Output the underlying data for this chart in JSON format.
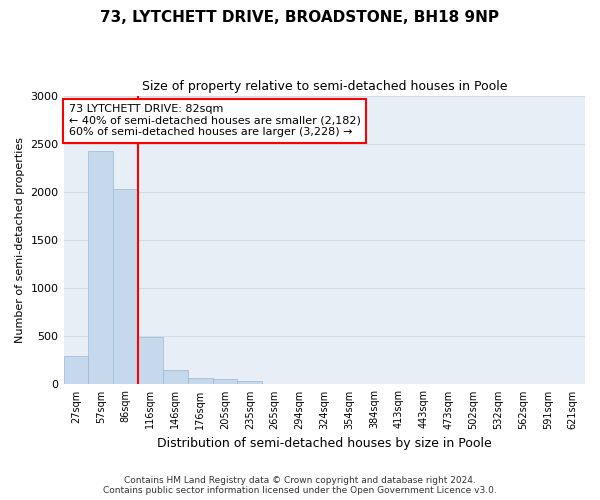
{
  "title": "73, LYTCHETT DRIVE, BROADSTONE, BH18 9NP",
  "subtitle": "Size of property relative to semi-detached houses in Poole",
  "xlabel": "Distribution of semi-detached houses by size in Poole",
  "ylabel": "Number of semi-detached properties",
  "bin_labels": [
    "27sqm",
    "57sqm",
    "86sqm",
    "116sqm",
    "146sqm",
    "176sqm",
    "205sqm",
    "235sqm",
    "265sqm",
    "294sqm",
    "324sqm",
    "354sqm",
    "384sqm",
    "413sqm",
    "443sqm",
    "473sqm",
    "502sqm",
    "532sqm",
    "562sqm",
    "591sqm",
    "621sqm"
  ],
  "bar_heights": [
    300,
    2420,
    2030,
    490,
    155,
    70,
    55,
    40,
    0,
    0,
    0,
    0,
    0,
    0,
    0,
    0,
    0,
    0,
    0,
    0,
    0
  ],
  "bar_color": "#c6d9ec",
  "bar_edge_color": "#9ab8d4",
  "property_sqm": 82,
  "property_line_bin_index": 2,
  "annotation_text": "73 LYTCHETT DRIVE: 82sqm\n← 40% of semi-detached houses are smaller (2,182)\n60% of semi-detached houses are larger (3,228) →",
  "ylim": [
    0,
    3000
  ],
  "yticks": [
    0,
    500,
    1000,
    1500,
    2000,
    2500,
    3000
  ],
  "grid_color": "#d0dce8",
  "background_color": "#e8eef5",
  "footer_line1": "Contains HM Land Registry data © Crown copyright and database right 2024.",
  "footer_line2": "Contains public sector information licensed under the Open Government Licence v3.0.",
  "n_bins": 21,
  "red_line_x": 2
}
